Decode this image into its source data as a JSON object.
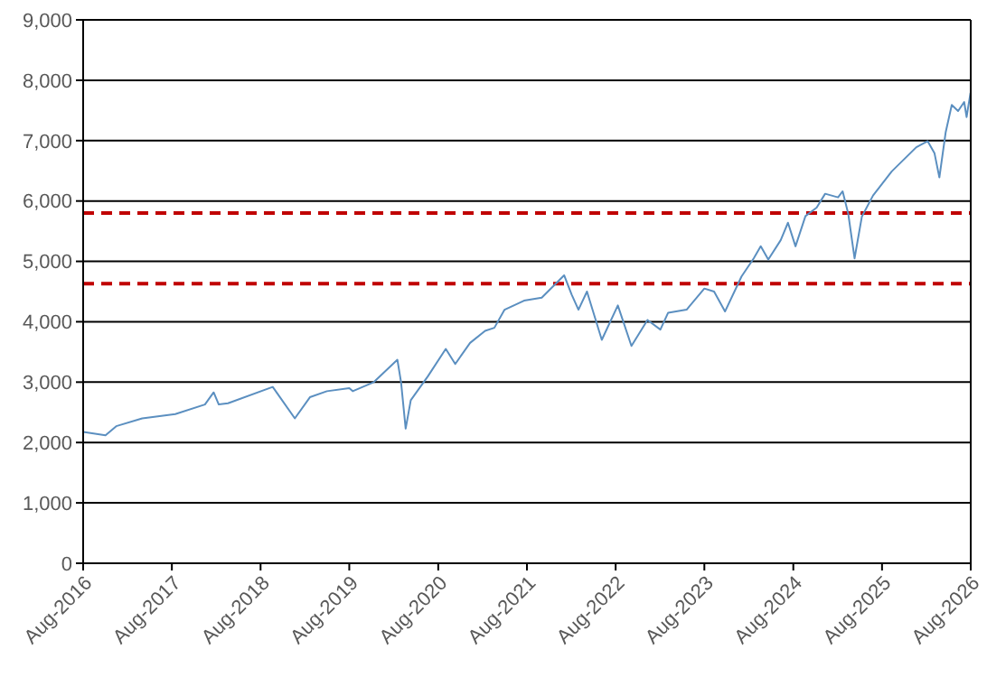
{
  "chart_data": {
    "type": "line",
    "x": [
      "2016-08-01",
      "2016-11-01",
      "2016-12-15",
      "2017-04-01",
      "2017-08-15",
      "2017-12-15",
      "2018-01-20",
      "2018-02-10",
      "2018-03-20",
      "2018-09-20",
      "2018-10-20",
      "2018-12-20",
      "2019-02-20",
      "2019-05-01",
      "2019-08-01",
      "2019-08-15",
      "2019-11-10",
      "2020-02-15",
      "2020-03-01",
      "2020-03-20",
      "2020-04-10",
      "2020-06-20",
      "2020-09-01",
      "2020-10-10",
      "2020-12-10",
      "2021-02-10",
      "2021-03-20",
      "2021-05-01",
      "2021-07-20",
      "2021-10-01",
      "2022-01-01",
      "2022-02-01",
      "2022-03-01",
      "2022-04-05",
      "2022-06-05",
      "2022-08-10",
      "2022-10-05",
      "2022-12-10",
      "2023-02-01",
      "2023-03-05",
      "2023-05-20",
      "2023-08-01",
      "2023-09-10",
      "2023-10-25",
      "2024-01-01",
      "2024-02-20",
      "2024-03-20",
      "2024-04-20",
      "2024-06-10",
      "2024-07-10",
      "2024-08-10",
      "2024-09-20",
      "2024-11-05",
      "2024-12-10",
      "2025-02-01",
      "2025-02-20",
      "2025-03-15",
      "2025-04-10",
      "2025-05-10",
      "2025-06-25",
      "2025-09-10",
      "2025-12-20",
      "2026-02-05",
      "2026-03-05",
      "2026-03-25",
      "2026-04-20",
      "2026-05-15",
      "2026-06-10",
      "2026-07-05",
      "2026-07-15",
      "2026-07-31"
    ],
    "series": [
      {
        "color": "#5b8fc0",
        "values": [
          2175,
          2120,
          2270,
          2400,
          2470,
          2630,
          2830,
          2630,
          2650,
          2920,
          2750,
          2400,
          2750,
          2850,
          2900,
          2850,
          3000,
          3370,
          3000,
          2230,
          2700,
          3100,
          3550,
          3300,
          3650,
          3850,
          3900,
          4200,
          4350,
          4400,
          4770,
          4450,
          4200,
          4500,
          3700,
          4270,
          3600,
          4030,
          3870,
          4150,
          4200,
          4550,
          4500,
          4170,
          4750,
          5050,
          5250,
          5030,
          5350,
          5640,
          5250,
          5750,
          5890,
          6120,
          6060,
          6160,
          5790,
          5050,
          5740,
          6090,
          6490,
          6890,
          6990,
          6790,
          6390,
          7140,
          7590,
          7490,
          7640,
          7390,
          7790
        ]
      }
    ],
    "xlim": [
      "2016-08-01",
      "2026-08-01"
    ],
    "xticks": [
      {
        "value": "2016-08-01",
        "label": "Aug-2016"
      },
      {
        "value": "2017-08-01",
        "label": "Aug-2017"
      },
      {
        "value": "2018-08-01",
        "label": "Aug-2018"
      },
      {
        "value": "2019-08-01",
        "label": "Aug-2019"
      },
      {
        "value": "2020-08-01",
        "label": "Aug-2020"
      },
      {
        "value": "2021-08-01",
        "label": "Aug-2021"
      },
      {
        "value": "2022-08-01",
        "label": "Aug-2022"
      },
      {
        "value": "2023-08-01",
        "label": "Aug-2023"
      },
      {
        "value": "2024-08-01",
        "label": "Aug-2024"
      },
      {
        "value": "2025-08-01",
        "label": "Aug-2025"
      },
      {
        "value": "2026-08-01",
        "label": "Aug-2026"
      }
    ],
    "ylim": [
      0,
      9000
    ],
    "yticks": [
      {
        "value": 0,
        "label": "0"
      },
      {
        "value": 1000,
        "label": "1,000"
      },
      {
        "value": 2000,
        "label": "2,000"
      },
      {
        "value": 3000,
        "label": "3,000"
      },
      {
        "value": 4000,
        "label": "4,000"
      },
      {
        "value": 5000,
        "label": "5,000"
      },
      {
        "value": 6000,
        "label": "6,000"
      },
      {
        "value": 7000,
        "label": "7,000"
      },
      {
        "value": 8000,
        "label": "8,000"
      },
      {
        "value": 9000,
        "label": "9,000"
      }
    ],
    "ref_lines": [
      {
        "axis": "y",
        "value": 5800,
        "color": "#c00000",
        "line_style": "dashed"
      },
      {
        "axis": "y",
        "value": 4630,
        "color": "#c00000",
        "line_style": "dashed"
      }
    ],
    "grid": "y",
    "legend": false,
    "marker": "none",
    "line_style": "solid"
  }
}
